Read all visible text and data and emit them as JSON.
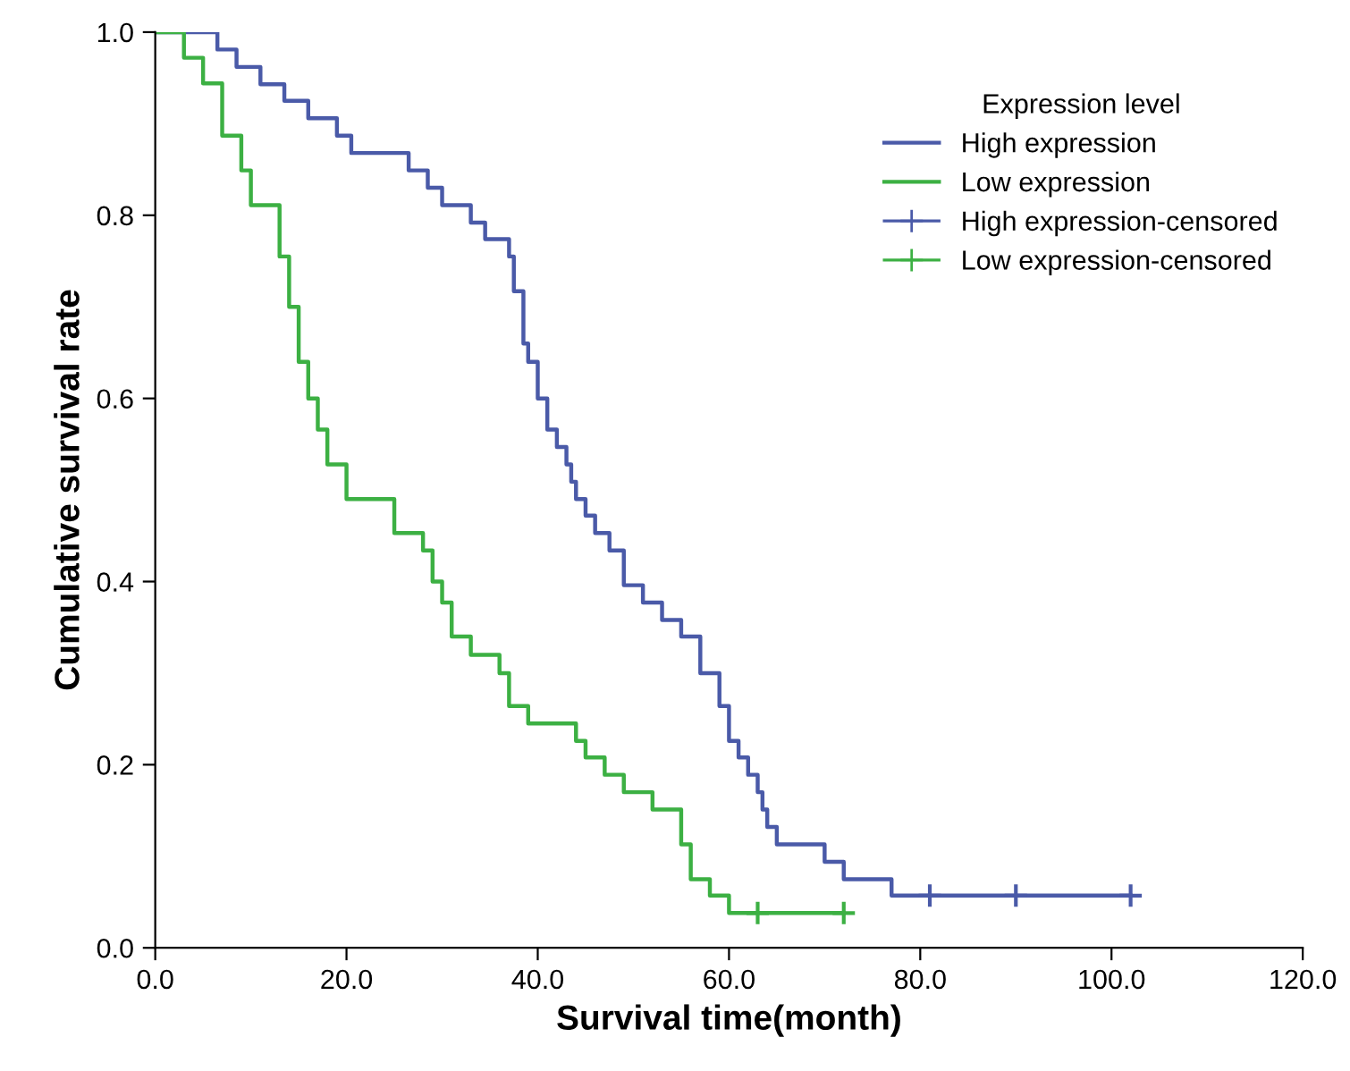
{
  "chart_data": {
    "type": "step",
    "xlabel": "Survival time(month)",
    "ylabel": "Cumulative survival rate",
    "legend_title": "Expression level",
    "legend": "top right",
    "grid": false,
    "xlim": [
      0,
      120
    ],
    "xticks": [
      {
        "value": 0,
        "label": "0.0"
      },
      {
        "value": 20,
        "label": "20.0"
      },
      {
        "value": 40,
        "label": "40.0"
      },
      {
        "value": 60,
        "label": "60.0"
      },
      {
        "value": 80,
        "label": "80.0"
      },
      {
        "value": 100,
        "label": "100.0"
      },
      {
        "value": 120,
        "label": "120.0"
      }
    ],
    "ylim": [
      0,
      1
    ],
    "yticks": [
      {
        "value": 0,
        "label": "0.0"
      },
      {
        "value": 0.2,
        "label": "0.2"
      },
      {
        "value": 0.4,
        "label": "0.4"
      },
      {
        "value": 0.6,
        "label": "0.6"
      },
      {
        "value": 0.8,
        "label": "0.8"
      },
      {
        "value": 1,
        "label": "1.0"
      }
    ],
    "series": [
      {
        "name": "High expression",
        "color": "#4a5aa8",
        "x": [
          0,
          6.5,
          8.5,
          11,
          13.5,
          16,
          19,
          20.5,
          26.5,
          28.5,
          30,
          33,
          34.5,
          37,
          37.5,
          38.5,
          39,
          40,
          41,
          42,
          43,
          43.5,
          44,
          45,
          46,
          47.5,
          49,
          51,
          53,
          55,
          57,
          59,
          60,
          61,
          62,
          63,
          63.5,
          64,
          65,
          70,
          72,
          77,
          102
        ],
        "values": [
          1.0,
          0.981,
          0.962,
          0.943,
          0.925,
          0.906,
          0.887,
          0.868,
          0.849,
          0.83,
          0.811,
          0.792,
          0.774,
          0.755,
          0.717,
          0.66,
          0.64,
          0.6,
          0.566,
          0.547,
          0.528,
          0.509,
          0.49,
          0.472,
          0.453,
          0.434,
          0.396,
          0.377,
          0.358,
          0.34,
          0.3,
          0.264,
          0.226,
          0.208,
          0.189,
          0.17,
          0.151,
          0.132,
          0.113,
          0.094,
          0.075,
          0.057,
          0.057
        ]
      },
      {
        "name": "Low expression",
        "color": "#3cb043",
        "x": [
          0,
          3,
          5,
          7,
          9,
          10,
          13,
          14,
          15,
          16,
          17,
          18,
          20,
          25,
          28,
          29,
          30,
          31,
          33,
          36,
          37,
          39,
          44,
          45,
          47,
          49,
          52,
          55,
          56,
          58,
          60,
          72
        ],
        "values": [
          1.0,
          0.972,
          0.944,
          0.887,
          0.849,
          0.811,
          0.755,
          0.7,
          0.64,
          0.6,
          0.566,
          0.528,
          0.49,
          0.453,
          0.434,
          0.4,
          0.377,
          0.34,
          0.32,
          0.3,
          0.264,
          0.245,
          0.226,
          0.208,
          0.189,
          0.17,
          0.151,
          0.113,
          0.075,
          0.057,
          0.038,
          0.038
        ]
      },
      {
        "name": "High expression-censored",
        "type": "scatter",
        "marker": "cross",
        "color": "#4a5aa8",
        "x": [
          81,
          90,
          102
        ],
        "values": [
          0.057,
          0.057,
          0.057
        ]
      },
      {
        "name": "Low expression-censored",
        "type": "scatter",
        "marker": "cross",
        "color": "#3cb043",
        "x": [
          63,
          72
        ],
        "values": [
          0.038,
          0.038
        ]
      }
    ]
  }
}
